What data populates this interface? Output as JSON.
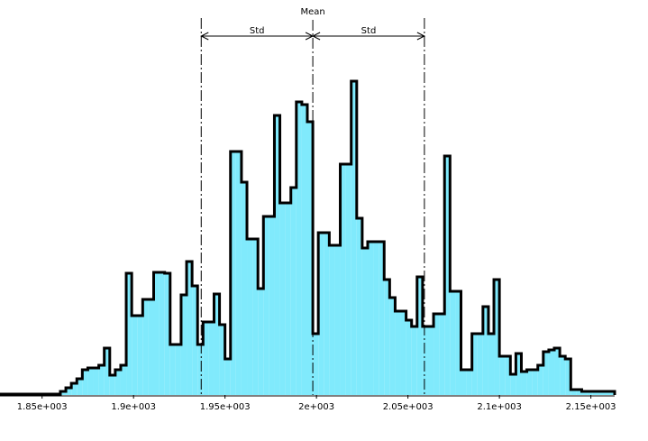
{
  "chart_data": {
    "type": "histogram",
    "bins": [
      1827,
      1860,
      1863,
      1866,
      1869,
      1872,
      1875,
      1878,
      1881,
      1884,
      1887,
      1890,
      1893,
      1896,
      1899,
      1902,
      1905,
      1908,
      1911,
      1914,
      1917,
      1920,
      1923,
      1926,
      1929,
      1932,
      1935,
      1938,
      1941,
      1944,
      1947,
      1950,
      1953,
      1956,
      1959,
      1962,
      1965,
      1968,
      1971,
      1974,
      1977,
      1980,
      1983,
      1986,
      1989,
      1992,
      1995,
      1998,
      2001,
      2004,
      2007,
      2010,
      2013,
      2016,
      2019,
      2022,
      2025,
      2028,
      2031,
      2034,
      2037,
      2040,
      2043,
      2046,
      2049,
      2052,
      2055,
      2058,
      2061,
      2064,
      2067,
      2070,
      2073,
      2076,
      2079,
      2082,
      2085,
      2088,
      2091,
      2094,
      2097,
      2100,
      2103,
      2106,
      2109,
      2112,
      2115,
      2118,
      2121,
      2124,
      2127,
      2130,
      2133,
      2136,
      2139,
      2142,
      2145,
      2148,
      2151,
      2163
    ],
    "values": [
      1,
      4,
      8,
      13,
      18,
      28,
      30,
      30,
      33,
      52,
      22,
      28,
      33,
      135,
      88,
      88,
      106,
      106,
      136,
      136,
      135,
      56,
      56,
      111,
      148,
      121,
      56,
      81,
      81,
      112,
      78,
      40,
      270,
      270,
      236,
      173,
      173,
      118,
      198,
      198,
      310,
      213,
      213,
      230,
      325,
      322,
      303,
      68,
      180,
      180,
      166,
      166,
      256,
      256,
      348,
      196,
      163,
      170,
      170,
      170,
      128,
      108,
      93,
      93,
      83,
      76,
      131,
      76,
      76,
      90,
      90,
      265,
      115,
      115,
      28,
      28,
      68,
      68,
      98,
      68,
      128,
      43,
      43,
      23,
      46,
      26,
      28,
      28,
      33,
      48,
      50,
      52,
      43,
      40,
      6,
      6,
      4,
      4,
      4
    ],
    "color": "#80eafc",
    "xlim": [
      1827,
      2163
    ],
    "ylim": [
      0,
      360
    ],
    "xticks": [
      {
        "value": 1850,
        "label": "1.85e+003"
      },
      {
        "value": 1900,
        "label": "1.9e+003"
      },
      {
        "value": 1950,
        "label": "1.95e+003"
      },
      {
        "value": 2000,
        "label": "2e+003"
      },
      {
        "value": 2050,
        "label": "2.05e+003"
      },
      {
        "value": 2100,
        "label": "2.1e+003"
      },
      {
        "value": 2150,
        "label": "2.15e+003"
      }
    ],
    "mean": 1998,
    "mean_label": "Mean",
    "std": 61,
    "std_label": "Std"
  }
}
